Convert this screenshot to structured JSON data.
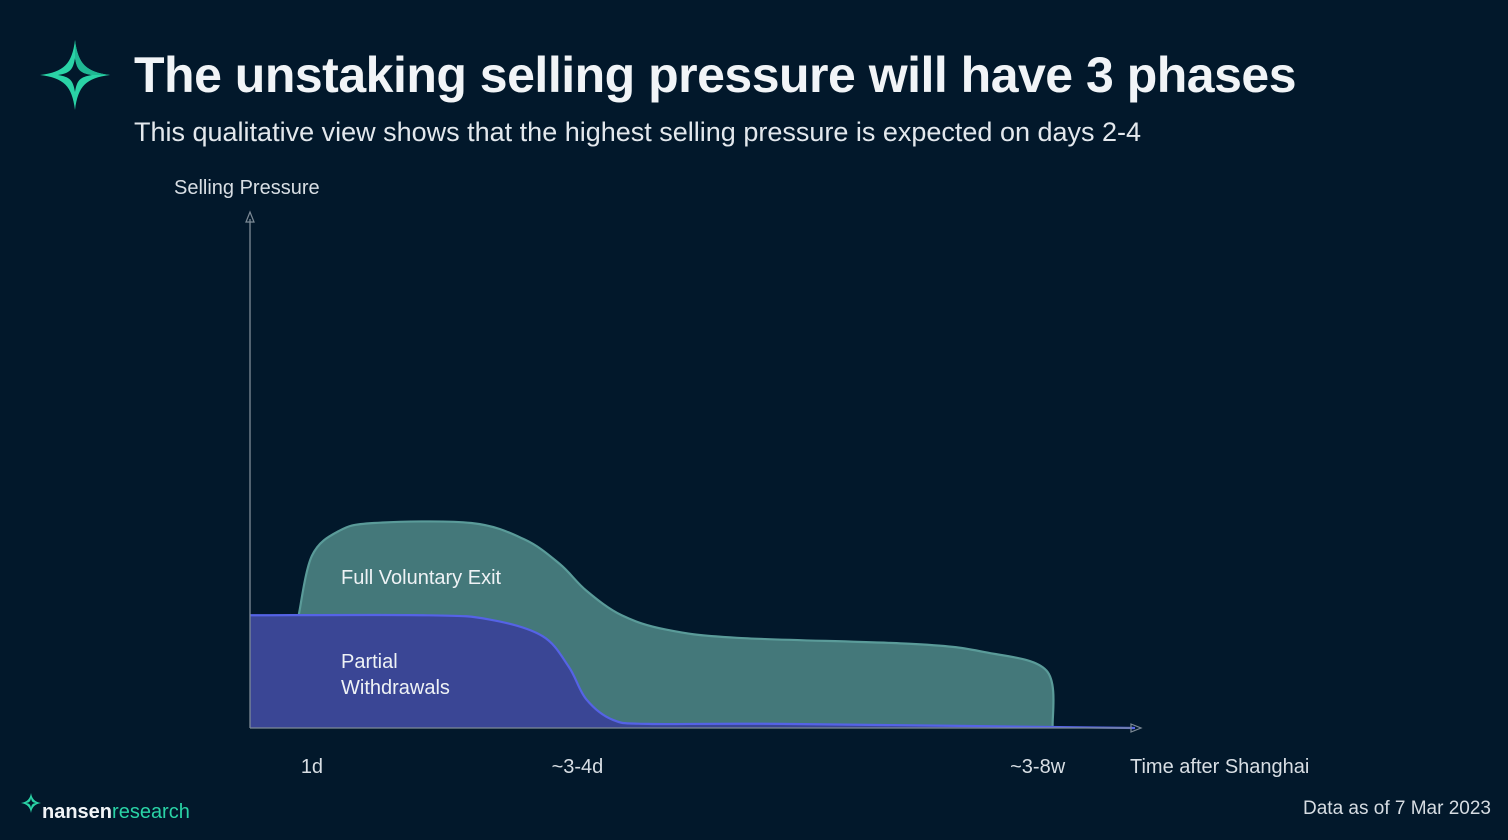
{
  "title": "The unstaking selling pressure will have 3 phases",
  "subtitle": "This qualitative view shows that the highest selling pressure is expected on days 2-4",
  "footnote": "Data as of 7 Mar 2023",
  "brand": {
    "name": "nansen",
    "suffix": "research"
  },
  "colors": {
    "background": "#02182b",
    "accent": "#2ad3a6",
    "full_exit_fill": "#44787a",
    "full_exit_stroke": "#5a9b99",
    "partial_fill": "#3a4695",
    "partial_stroke": "#5563e6",
    "axis": "#7d8a96"
  },
  "chart_data": {
    "type": "area",
    "title": "",
    "ylabel": "Selling Pressure",
    "xlabel": "Time after Shanghai",
    "x_ticks": [
      "1d",
      "~3-4d",
      "~3-8w"
    ],
    "y_ticks": [],
    "qualitative": true,
    "x_range": [
      0,
      100
    ],
    "y_range": [
      0,
      100
    ],
    "series": [
      {
        "name": "Full Voluntary Exit",
        "label": "Full Voluntary Exit",
        "points": [
          [
            5.5,
            55
          ],
          [
            7,
            84
          ],
          [
            10,
            96
          ],
          [
            14,
            100
          ],
          [
            25,
            100
          ],
          [
            31,
            92
          ],
          [
            35,
            80
          ],
          [
            38,
            67
          ],
          [
            42,
            55
          ],
          [
            47,
            48
          ],
          [
            55,
            44
          ],
          [
            75,
            41
          ],
          [
            83,
            37
          ],
          [
            90,
            28
          ],
          [
            90.7,
            0
          ]
        ]
      },
      {
        "name": "Partial Withdrawals",
        "label": "Partial\nWithdrawals",
        "points": [
          [
            0,
            55
          ],
          [
            20,
            55
          ],
          [
            27,
            53
          ],
          [
            33,
            45
          ],
          [
            36,
            30
          ],
          [
            38,
            14
          ],
          [
            41,
            4
          ],
          [
            45,
            2
          ],
          [
            60,
            2
          ],
          [
            100,
            0
          ]
        ]
      }
    ]
  }
}
